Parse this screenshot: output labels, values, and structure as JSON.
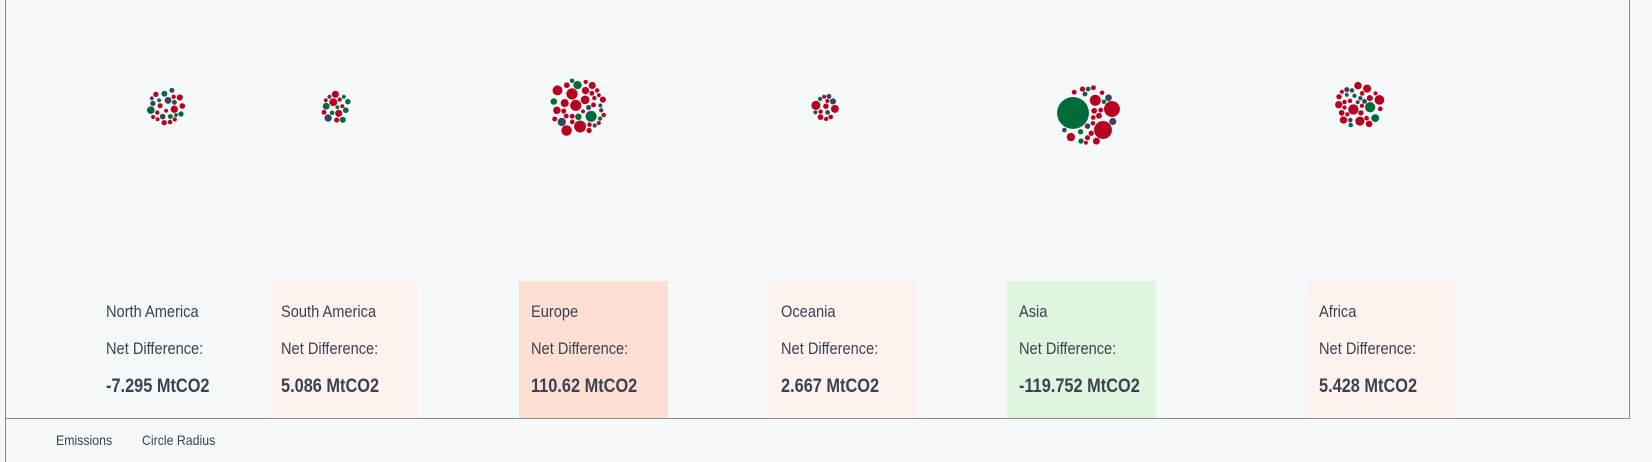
{
  "chart_data": {
    "type": "bubble-cluster",
    "colors": {
      "increase": "#b5001f",
      "decrease": "#006b3a",
      "other": "#3a4458"
    },
    "groups": [
      {
        "name": "North America",
        "net_label": "Net Difference:",
        "net_value": "-7.295 MtCO2",
        "net": -7.295,
        "card_color": "#f6f9fa"
      },
      {
        "name": "South America",
        "net_label": "Net Difference:",
        "net_value": "5.086 MtCO2",
        "net": 5.086,
        "card_color": "#fef3ef"
      },
      {
        "name": "Europe",
        "net_label": "Net Difference:",
        "net_value": "110.62 MtCO2",
        "net": 110.62,
        "card_color": "#fde0d3"
      },
      {
        "name": "Oceania",
        "net_label": "Net Difference:",
        "net_value": "2.667 MtCO2",
        "net": 2.667,
        "card_color": "#fef3ef"
      },
      {
        "name": "Asia",
        "net_label": "Net Difference:",
        "net_value": "-119.752 MtCO2",
        "net": -119.752,
        "card_color": "#dff5df"
      },
      {
        "name": "Africa",
        "net_label": "Net Difference:",
        "net_value": "5.428 MtCO2",
        "net": 5.428,
        "card_color": "#fef3ef"
      }
    ]
  },
  "legend": {
    "emissions": "Emissions",
    "circle_radius": "Circle Radius"
  }
}
